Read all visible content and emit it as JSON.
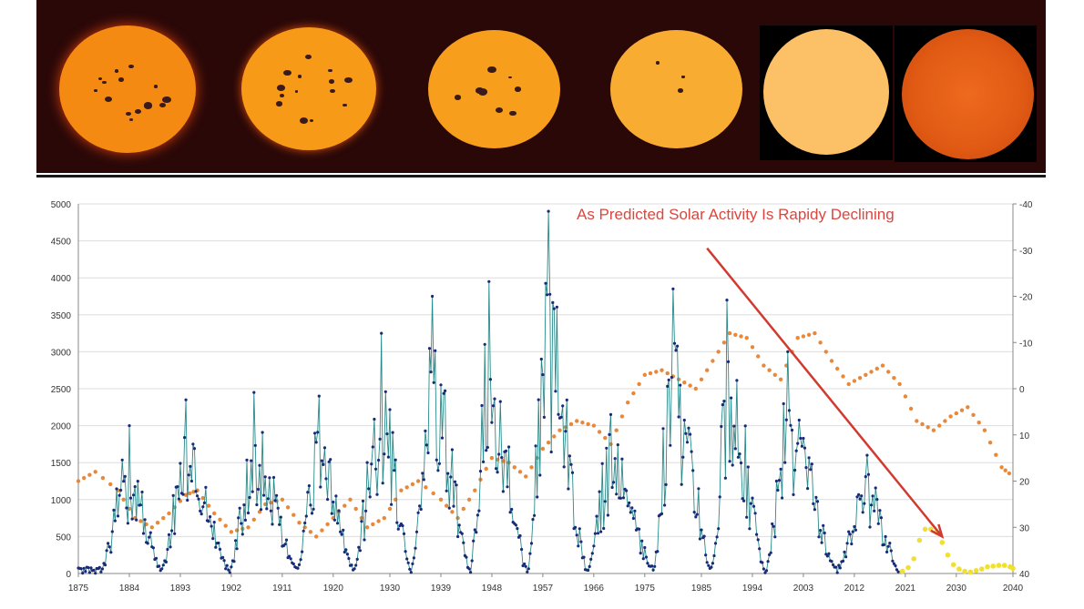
{
  "banner": {
    "suns": [
      {
        "color": "#f58a12",
        "spots": "many"
      },
      {
        "color": "#f79a18",
        "spots": "many"
      },
      {
        "color": "#f79f1c",
        "spots": "some"
      },
      {
        "color": "#f8ad32",
        "spots": "few"
      },
      {
        "color": "#fcc066",
        "spots": "none"
      },
      {
        "color": "#e8621a",
        "spots": "none"
      }
    ]
  },
  "chart_data": {
    "type": "line",
    "title": "As Predicted Solar Activity Is Rapidy Declining",
    "x_ticks": [
      "1875",
      "1884",
      "1893",
      "1902",
      "1911",
      "1920",
      "1930",
      "1939",
      "1948",
      "1957",
      "1966",
      "1975",
      "1985",
      "1994",
      "2003",
      "2012",
      "2021",
      "2030",
      "2040"
    ],
    "xlim": [
      1875,
      2040
    ],
    "y_left_ticks": [
      "0",
      "500",
      "1000",
      "1500",
      "2000",
      "2500",
      "3000",
      "3500",
      "4000",
      "4500",
      "5000"
    ],
    "ylim_left": [
      0,
      5000
    ],
    "y_right_ticks": [
      "-40",
      "-30",
      "-20",
      "-10",
      "0",
      "10",
      "20",
      "30",
      "40"
    ],
    "ylim_right": [
      -40,
      40
    ],
    "right_axis_inverted": true,
    "grid": "horizontal",
    "colors": {
      "sunspots": "#1a2a7a",
      "sunspots_line": "#2a8a8a",
      "predicted": "#e8883a",
      "forecast": "#f2e030",
      "arrow": "#d23a30"
    },
    "series": [
      {
        "axis": "left",
        "style": "line-markers",
        "cycle_peaks": [
          {
            "year": 1883.9,
            "value": 2000
          },
          {
            "year": 1894.1,
            "value": 2350
          },
          {
            "year": 1906.1,
            "value": 2450
          },
          {
            "year": 1917.6,
            "value": 2400
          },
          {
            "year": 1928.4,
            "value": 3250
          },
          {
            "year": 1937.4,
            "value": 3750
          },
          {
            "year": 1947.4,
            "value": 3950
          },
          {
            "year": 1957.9,
            "value": 4900
          },
          {
            "year": 1968.9,
            "value": 2150
          },
          {
            "year": 1979.9,
            "value": 3850
          },
          {
            "year": 1989.6,
            "value": 3700
          },
          {
            "year": 2000.3,
            "value": 3000
          },
          {
            "year": 2014.3,
            "value": 1600
          }
        ],
        "cycle_minima": [
          1878.9,
          1889.6,
          1901.7,
          1913.6,
          1923.6,
          1933.8,
          1944.2,
          1954.3,
          1964.9,
          1976.5,
          1986.8,
          1996.4,
          2008.9,
          2019.9
        ]
      },
      {
        "axis": "right",
        "style": "dots",
        "points": [
          [
            1875,
            20
          ],
          [
            1878,
            18
          ],
          [
            1882,
            22
          ],
          [
            1885,
            28
          ],
          [
            1888,
            30
          ],
          [
            1891,
            27
          ],
          [
            1894,
            23
          ],
          [
            1896,
            22
          ],
          [
            1899,
            27
          ],
          [
            1902,
            31
          ],
          [
            1905,
            30
          ],
          [
            1908,
            25
          ],
          [
            1911,
            24
          ],
          [
            1914,
            29
          ],
          [
            1917,
            32
          ],
          [
            1920,
            28
          ],
          [
            1923,
            24
          ],
          [
            1926,
            30
          ],
          [
            1929,
            28
          ],
          [
            1932,
            22
          ],
          [
            1935,
            20
          ],
          [
            1939,
            24
          ],
          [
            1942,
            28
          ],
          [
            1945,
            22
          ],
          [
            1948,
            15
          ],
          [
            1951,
            16
          ],
          [
            1954,
            19
          ],
          [
            1957,
            13
          ],
          [
            1960,
            9
          ],
          [
            1963,
            7
          ],
          [
            1966,
            8
          ],
          [
            1969,
            12
          ],
          [
            1972,
            3
          ],
          [
            1975,
            -3
          ],
          [
            1978,
            -4
          ],
          [
            1981,
            -2
          ],
          [
            1984,
            0
          ],
          [
            1987,
            -6
          ],
          [
            1990,
            -12
          ],
          [
            1993,
            -11
          ],
          [
            1996,
            -5
          ],
          [
            1999,
            -2
          ],
          [
            2002,
            -11
          ],
          [
            2005,
            -12
          ],
          [
            2008,
            -6
          ],
          [
            2011,
            -1
          ],
          [
            2014,
            -3
          ],
          [
            2017,
            -5
          ],
          [
            2020,
            -1
          ],
          [
            2023,
            7
          ],
          [
            2026,
            9
          ],
          [
            2029,
            6
          ],
          [
            2032,
            4
          ],
          [
            2035,
            9
          ],
          [
            2038,
            17
          ],
          [
            2040,
            19
          ]
        ]
      },
      {
        "axis": "left",
        "style": "dots",
        "points": [
          [
            2020.5,
            30
          ],
          [
            2021.5,
            80
          ],
          [
            2022.5,
            200
          ],
          [
            2023.5,
            450
          ],
          [
            2024.5,
            600
          ],
          [
            2025.5,
            600
          ],
          [
            2026.5,
            560
          ],
          [
            2027.5,
            420
          ],
          [
            2028.5,
            250
          ],
          [
            2029.5,
            120
          ],
          [
            2030.5,
            60
          ],
          [
            2031.5,
            30
          ],
          [
            2032.5,
            20
          ],
          [
            2033.5,
            40
          ],
          [
            2034.5,
            60
          ],
          [
            2035.5,
            90
          ],
          [
            2036.5,
            100
          ],
          [
            2037.5,
            110
          ],
          [
            2038.5,
            110
          ],
          [
            2039.5,
            90
          ],
          [
            2040,
            70
          ]
        ]
      }
    ],
    "arrow": {
      "from": {
        "year": 1986,
        "value": 4400
      },
      "to": {
        "year": 2027.5,
        "value": 500
      }
    }
  }
}
